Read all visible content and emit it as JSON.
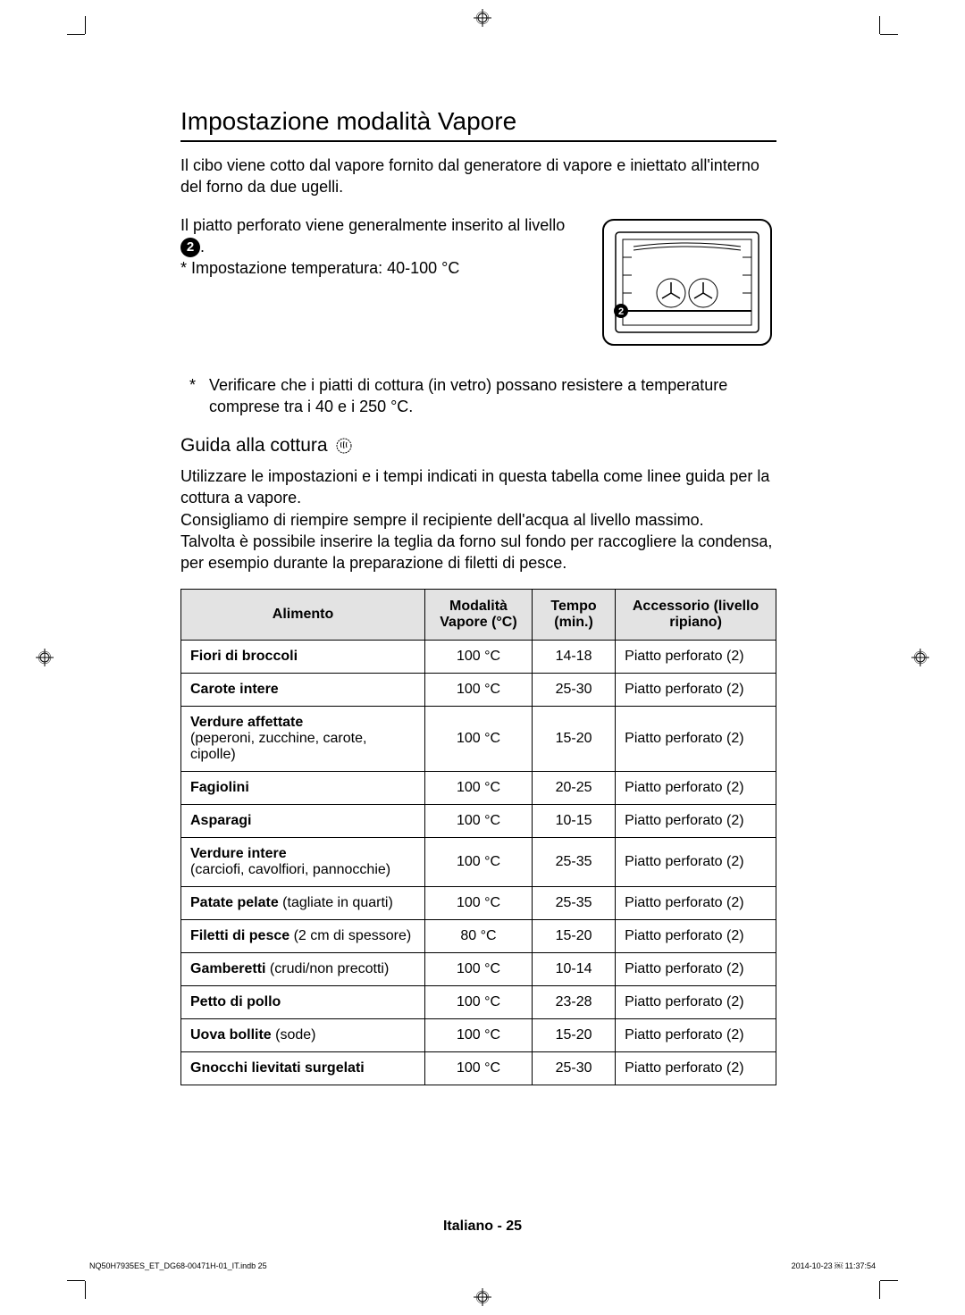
{
  "heading": "Impostazione modalità Vapore",
  "intro": "Il cibo viene cotto dal vapore fornito dal generatore di vapore e iniettato all'interno del forno da due ugelli.",
  "plateText1": "Il piatto perforato viene generalmente inserito al livello ",
  "levelNumber": "2",
  "plateText2": ".",
  "tempSetting": "* Impostazione temperatura: 40-100 °C",
  "noteAsterisk": "*",
  "noteText": "Verificare che i piatti di cottura (in vetro) possano resistere a temperature comprese tra i 40 e i 250 °C.",
  "guideHeading": "Guida alla cottura",
  "guideText1": "Utilizzare le impostazioni e i tempi indicati in questa tabella come linee guida per la cottura a vapore.",
  "guideText2": "Consigliamo di riempire sempre il recipiente dell'acqua al livello massimo.",
  "guideText3": "Talvolta è possibile inserire la teglia da forno sul fondo per raccogliere la condensa, per esempio durante la preparazione di filetti di pesce.",
  "table": {
    "headers": {
      "food": "Alimento",
      "mode": "Modalità Vapore (°C)",
      "time": "Tempo (min.)",
      "accessory": "Accessorio (livello ripiano)"
    },
    "rows": [
      {
        "foodBold": "Fiori di broccoli",
        "foodDetail": "",
        "mode": "100 °C",
        "time": "14-18",
        "accessory": "Piatto perforato (2)"
      },
      {
        "foodBold": "Carote intere",
        "foodDetail": "",
        "mode": "100 °C",
        "time": "25-30",
        "accessory": "Piatto perforato (2)"
      },
      {
        "foodBold": "Verdure affettate",
        "foodDetail": "(peperoni, zucchine, carote, cipolle)",
        "mode": "100 °C",
        "time": "15-20",
        "accessory": "Piatto perforato (2)"
      },
      {
        "foodBold": "Fagiolini",
        "foodDetail": "",
        "mode": "100 °C",
        "time": "20-25",
        "accessory": "Piatto perforato (2)"
      },
      {
        "foodBold": "Asparagi",
        "foodDetail": "",
        "mode": "100 °C",
        "time": "10-15",
        "accessory": "Piatto perforato (2)"
      },
      {
        "foodBold": "Verdure intere",
        "foodDetail": "(carciofi, cavolfiori, pannocchie)",
        "mode": "100 °C",
        "time": "25-35",
        "accessory": "Piatto perforato (2)"
      },
      {
        "foodBold": "Patate pelate",
        "foodDetailInline": " (tagliate in quarti)",
        "mode": "100 °C",
        "time": "25-35",
        "accessory": "Piatto perforato (2)"
      },
      {
        "foodBold": "Filetti di pesce",
        "foodDetailInline": " (2 cm di spessore)",
        "mode": "80 °C",
        "time": "15-20",
        "accessory": "Piatto perforato (2)"
      },
      {
        "foodBold": "Gamberetti",
        "foodDetailInline": " (crudi/non precotti)",
        "mode": "100 °C",
        "time": "10-14",
        "accessory": "Piatto perforato (2)"
      },
      {
        "foodBold": "Petto di pollo",
        "foodDetail": "",
        "mode": "100 °C",
        "time": "23-28",
        "accessory": "Piatto perforato (2)"
      },
      {
        "foodBold": "Uova bollite",
        "foodDetailInline": " (sode)",
        "mode": "100 °C",
        "time": "15-20",
        "accessory": "Piatto perforato (2)"
      },
      {
        "foodBold": "Gnocchi lievitati surgelati",
        "foodDetail": "",
        "mode": "100 °C",
        "time": "25-30",
        "accessory": "Piatto perforato (2)"
      }
    ]
  },
  "footer": "Italiano - 25",
  "metaLeft": "NQ50H7935ES_ET_DG68-00471H-01_IT.indb   25",
  "metaRight": "2014-10-23   ￼ 11:37:54"
}
